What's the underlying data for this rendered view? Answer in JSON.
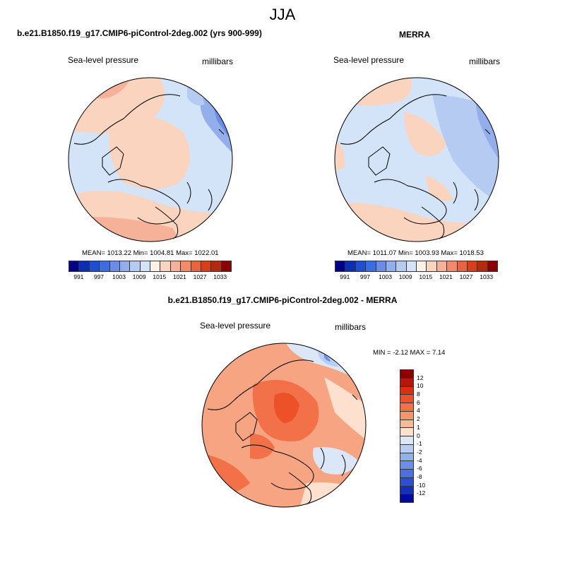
{
  "main_title": "JJA",
  "panels": [
    {
      "title": "b.e21.B1850.f19_g17.CMIP6-piControl-2deg.002 (yrs 900-999)",
      "left_label": "Sea-level pressure",
      "right_label": "millibars",
      "stats": "MEAN= 1013.22  Min= 1004.81  Max= 1022.01"
    },
    {
      "title": "MERRA",
      "left_label": "Sea-level pressure",
      "right_label": "millibars",
      "stats": "MEAN= 1011.07  Min= 1003.93  Max= 1018.53"
    },
    {
      "title": "b.e21.B1850.f19_g17.CMIP6-piControl-2deg.002 - MERRA",
      "left_label": "Sea-level pressure",
      "right_label": "millibars",
      "stats": "MIN =  -2.12 MAX =   7.14"
    }
  ],
  "abs_colorbar": {
    "colors": [
      "#00008b",
      "#0a2fb0",
      "#1f4fd0",
      "#3a6de0",
      "#6a8ee6",
      "#93afeb",
      "#b6cbf1",
      "#d3e3f8",
      "#fdf0e6",
      "#fbd4bf",
      "#f6b199",
      "#f08b6c",
      "#e8633f",
      "#d73f1c",
      "#b42a10",
      "#8b0000"
    ],
    "labels": [
      "991",
      "997",
      "1003",
      "1009",
      "1015",
      "1021",
      "1027",
      "1033"
    ]
  },
  "diff_colorbar": {
    "colors": [
      "#8b0000",
      "#b5180a",
      "#d83014",
      "#ec5127",
      "#f27148",
      "#f6946e",
      "#f9b99b",
      "#fde0cd",
      "#dbe7f7",
      "#b7cdf1",
      "#92b0eb",
      "#6c8fe5",
      "#4b70dd",
      "#2e4fd0",
      "#142ebd",
      "#000b99"
    ],
    "labels": [
      "12",
      "10",
      "8",
      "6",
      "4",
      "2",
      "1",
      "0",
      "-1",
      "-2",
      "-4",
      "-6",
      "-8",
      "-10",
      "-12"
    ]
  }
}
